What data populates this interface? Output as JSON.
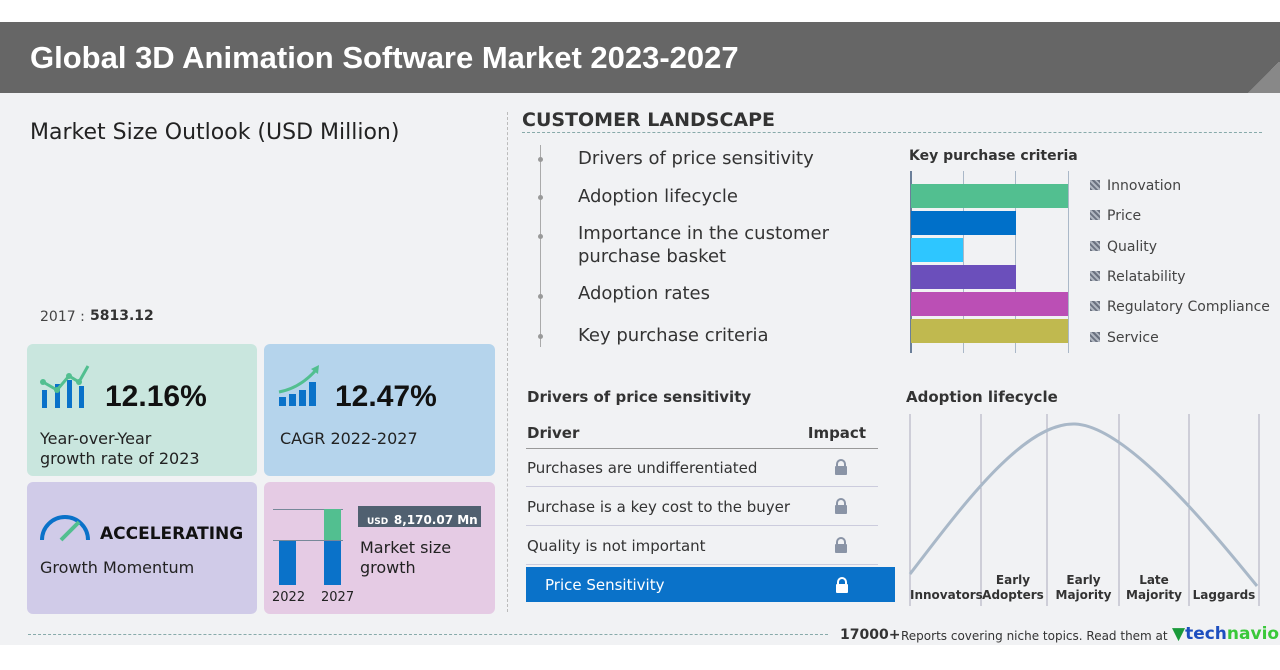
{
  "title": "Global 3D Animation Software Market 2023-2027",
  "left": {
    "heading": "Market Size Outlook (USD Million)",
    "base_year": "2017 :",
    "base_value": "5813.12",
    "yoy": {
      "value": "12.16%",
      "label1": "Year-over-Year",
      "label2": "growth rate of 2023"
    },
    "cagr": {
      "value": "12.47%",
      "label": "CAGR 2022-2027"
    },
    "momentum": {
      "value": "ACCELERATING",
      "label": "Growth Momentum"
    },
    "growth": {
      "currency": "USD",
      "value": "8,170.07 Mn",
      "label1": "Market size",
      "label2": "growth",
      "year1": "2022",
      "year2": "2027"
    }
  },
  "customer": {
    "heading": "CUSTOMER LANDSCAPE",
    "items": [
      "Drivers of price sensitivity",
      "Adoption lifecycle",
      "Importance in the customer",
      "purchase basket",
      "Adoption rates",
      "Key purchase criteria"
    ]
  },
  "chart_data": {
    "type": "bar",
    "title": "Key purchase criteria",
    "categories": [
      "Innovation",
      "Price",
      "Quality",
      "Relatability",
      "Regulatory Compliance",
      "Service"
    ],
    "values": [
      3,
      2,
      1,
      2,
      3,
      3
    ],
    "colors": [
      "#52bf90",
      "#0070c9",
      "#2ec6ff",
      "#6b4fbb",
      "#bb4fb5",
      "#c0b94f"
    ],
    "xlim": [
      0,
      3
    ],
    "grid": true,
    "legend": "right"
  },
  "drivers": {
    "heading": "Drivers of price sensitivity",
    "col_driver": "Driver",
    "col_impact": "Impact",
    "rows": [
      "Purchases are undifferentiated",
      "Purchase is a key cost to the buyer",
      "Quality is not important"
    ],
    "highlight": "Price Sensitivity"
  },
  "adoption": {
    "heading": "Adoption lifecycle",
    "stages": [
      [
        "Innovators",
        ""
      ],
      [
        "Early",
        "Adopters"
      ],
      [
        "Early",
        "Majority"
      ],
      [
        "Late",
        "Majority"
      ],
      [
        "Laggards",
        ""
      ]
    ]
  },
  "footer": {
    "count": "17000+",
    "text": "Reports covering niche topics. Read them at",
    "brand1": "tech",
    "brand2": "navio"
  }
}
